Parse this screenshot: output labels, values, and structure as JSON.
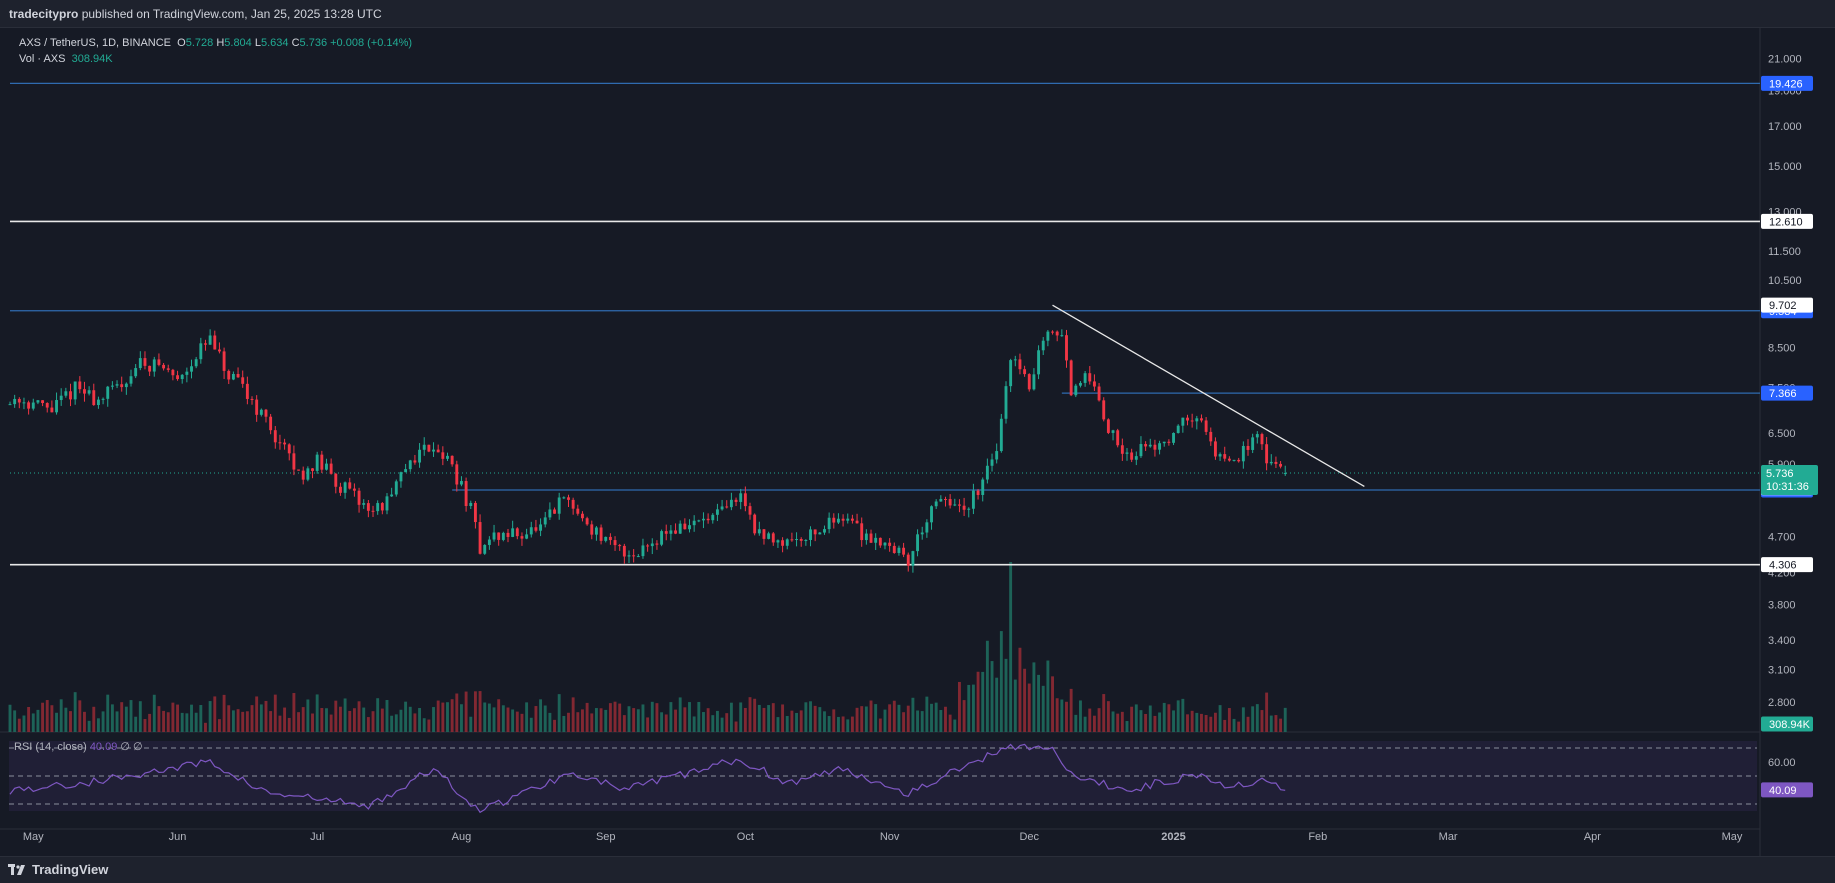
{
  "header": {
    "author": "tradecitypro",
    "publish_text": "published on TradingView.com, Jan 25, 2025 13:28 UTC"
  },
  "legend": {
    "symbol": "AXS / TetherUS, 1D, BINANCE",
    "open_label": "O",
    "open": "5.728",
    "high_label": "H",
    "high": "5.804",
    "low_label": "L",
    "low": "5.634",
    "close_label": "C",
    "close": "5.736",
    "change": "+0.008 (+0.14%)",
    "vol_label": "Vol · AXS",
    "vol_value": "308.94K"
  },
  "rsi_legend": {
    "label": "RSI (14, close)",
    "value": "40.09",
    "extra": "∅ ∅"
  },
  "footer": {
    "brand": "TradingView"
  },
  "colors": {
    "up": "#22ab94",
    "down": "#f23645",
    "blue_line": "#2962ff",
    "hline_blue": "#2f6bb0",
    "rsi": "#7e57c2",
    "background": "#161a25"
  },
  "chart_data": {
    "type": "candlestick",
    "symbol": "AXS / TetherUS",
    "interval": "1D",
    "exchange": "BINANCE",
    "y_scale": "log",
    "ylim": [
      2.55,
      21.5
    ],
    "price_ticks": [
      "21.000",
      "19.000",
      "17.000",
      "15.000",
      "13.000",
      "11.500",
      "10.500",
      "8.500",
      "7.500",
      "6.500",
      "5.900",
      "4.700",
      "4.200",
      "3.800",
      "3.400",
      "3.100",
      "2.800"
    ],
    "price_tick_values": [
      21.0,
      19.0,
      17.0,
      15.0,
      13.0,
      11.5,
      10.5,
      8.5,
      7.5,
      6.5,
      5.9,
      4.7,
      4.2,
      3.8,
      3.4,
      3.1,
      2.8
    ],
    "x_ticks": [
      "May",
      "Jun",
      "Jul",
      "Aug",
      "Sep",
      "Oct",
      "Nov",
      "Dec",
      "2025",
      "Feb",
      "Mar",
      "Apr",
      "May"
    ],
    "x_tick_dates": [
      "2024-05-01",
      "2024-06-01",
      "2024-07-01",
      "2024-08-01",
      "2024-09-01",
      "2024-10-01",
      "2024-11-01",
      "2024-12-01",
      "2025-01-01",
      "2025-02-01",
      "2025-03-01",
      "2025-04-01",
      "2025-05-01"
    ],
    "x_range": [
      "2024-04-26",
      "2025-05-04"
    ],
    "last_date": "2025-01-25",
    "horizontal_levels": [
      {
        "price": 19.426,
        "label": "19.426",
        "style": "blue",
        "from": "2024-04-26"
      },
      {
        "price": 12.61,
        "label": "12.610",
        "style": "white",
        "from": "2024-04-26"
      },
      {
        "price": 9.534,
        "label": "9.534",
        "style": "blue",
        "from": "2024-04-26"
      },
      {
        "price": 7.366,
        "label": "7.366",
        "style": "blue",
        "from": "2024-12-08"
      },
      {
        "price": 5.439,
        "label": "5.439",
        "style": "blue",
        "from": "2024-07-30"
      },
      {
        "price": 4.306,
        "label": "4.306",
        "style": "white",
        "from": "2024-04-26"
      }
    ],
    "extra_price_labels": [
      {
        "price": 9.702,
        "label": "9.702",
        "style": "white-box"
      },
      {
        "price": 5.477,
        "label": "5.477",
        "style": "white-box"
      }
    ],
    "current_price": {
      "price": 5.736,
      "label": "5.736",
      "countdown": "10:31:36"
    },
    "trendline": {
      "from": {
        "date": "2024-12-06",
        "price": 9.7
      },
      "to": {
        "date": "2025-02-11",
        "price": 5.5
      }
    },
    "price_path": [
      [
        "2024-04-26",
        7.3
      ],
      [
        "2024-05-05",
        7.0
      ],
      [
        "2024-05-10",
        7.5
      ],
      [
        "2024-05-15",
        7.2
      ],
      [
        "2024-05-20",
        7.6
      ],
      [
        "2024-05-24",
        8.1
      ],
      [
        "2024-05-28",
        8.05
      ],
      [
        "2024-06-01",
        7.7
      ],
      [
        "2024-06-05",
        8.3
      ],
      [
        "2024-06-08",
        8.7
      ],
      [
        "2024-06-12",
        7.7
      ],
      [
        "2024-06-15",
        7.5
      ],
      [
        "2024-06-19",
        6.9
      ],
      [
        "2024-06-23",
        6.3
      ],
      [
        "2024-06-27",
        5.7
      ],
      [
        "2024-07-01",
        5.95
      ],
      [
        "2024-07-05",
        5.6
      ],
      [
        "2024-07-09",
        5.3
      ],
      [
        "2024-07-13",
        5.1
      ],
      [
        "2024-07-17",
        5.3
      ],
      [
        "2024-07-21",
        6.0
      ],
      [
        "2024-07-26",
        6.3
      ],
      [
        "2024-07-30",
        5.85
      ],
      [
        "2024-08-03",
        5.1
      ],
      [
        "2024-08-05",
        4.55
      ],
      [
        "2024-08-08",
        4.7
      ],
      [
        "2024-08-13",
        4.75
      ],
      [
        "2024-08-18",
        4.8
      ],
      [
        "2024-08-23",
        5.3
      ],
      [
        "2024-08-28",
        4.9
      ],
      [
        "2024-09-02",
        4.55
      ],
      [
        "2024-09-07",
        4.45
      ],
      [
        "2024-09-13",
        4.75
      ],
      [
        "2024-09-20",
        4.9
      ],
      [
        "2024-09-25",
        5.0
      ],
      [
        "2024-09-30",
        5.35
      ],
      [
        "2024-10-04",
        4.7
      ],
      [
        "2024-10-10",
        4.65
      ],
      [
        "2024-10-17",
        4.8
      ],
      [
        "2024-10-22",
        5.05
      ],
      [
        "2024-10-26",
        4.75
      ],
      [
        "2024-11-01",
        4.6
      ],
      [
        "2024-11-05",
        4.35
      ],
      [
        "2024-11-09",
        5.0
      ],
      [
        "2024-11-13",
        5.3
      ],
      [
        "2024-11-17",
        5.0
      ],
      [
        "2024-11-21",
        5.6
      ],
      [
        "2024-11-24",
        6.2
      ],
      [
        "2024-11-27",
        8.2
      ],
      [
        "2024-12-01",
        7.6
      ],
      [
        "2024-12-05",
        9.1
      ],
      [
        "2024-12-08",
        9.0
      ],
      [
        "2024-12-10",
        7.3
      ],
      [
        "2024-12-14",
        7.8
      ],
      [
        "2024-12-18",
        6.6
      ],
      [
        "2024-12-22",
        6.1
      ],
      [
        "2024-12-27",
        6.2
      ],
      [
        "2025-01-02",
        6.6
      ],
      [
        "2025-01-06",
        6.9
      ],
      [
        "2025-01-10",
        6.1
      ],
      [
        "2025-01-15",
        6.0
      ],
      [
        "2025-01-19",
        6.4
      ],
      [
        "2025-01-22",
        5.85
      ],
      [
        "2025-01-25",
        5.736
      ]
    ],
    "volume": {
      "label": "Vol · AXS",
      "last": "308.94K",
      "spike_date": "2024-11-27"
    },
    "rsi": {
      "label": "RSI (14, close)",
      "period": 14,
      "last": "40.09",
      "ticks": [
        "60.00"
      ],
      "bands": [
        70,
        50,
        30
      ],
      "path": [
        [
          "2024-04-26",
          40
        ],
        [
          "2024-05-10",
          44
        ],
        [
          "2024-05-25",
          52
        ],
        [
          "2024-06-08",
          60
        ],
        [
          "2024-06-20",
          38
        ],
        [
          "2024-07-05",
          32
        ],
        [
          "2024-07-12",
          28
        ],
        [
          "2024-07-26",
          55
        ],
        [
          "2024-08-05",
          25
        ],
        [
          "2024-08-25",
          53
        ],
        [
          "2024-09-05",
          40
        ],
        [
          "2024-09-30",
          62
        ],
        [
          "2024-10-10",
          45
        ],
        [
          "2024-10-22",
          55
        ],
        [
          "2024-11-05",
          38
        ],
        [
          "2024-11-27",
          72
        ],
        [
          "2024-12-06",
          70
        ],
        [
          "2024-12-10",
          50
        ],
        [
          "2024-12-22",
          40
        ],
        [
          "2025-01-07",
          52
        ],
        [
          "2025-01-13",
          42
        ],
        [
          "2025-01-19",
          47
        ],
        [
          "2025-01-25",
          40
        ]
      ]
    }
  }
}
